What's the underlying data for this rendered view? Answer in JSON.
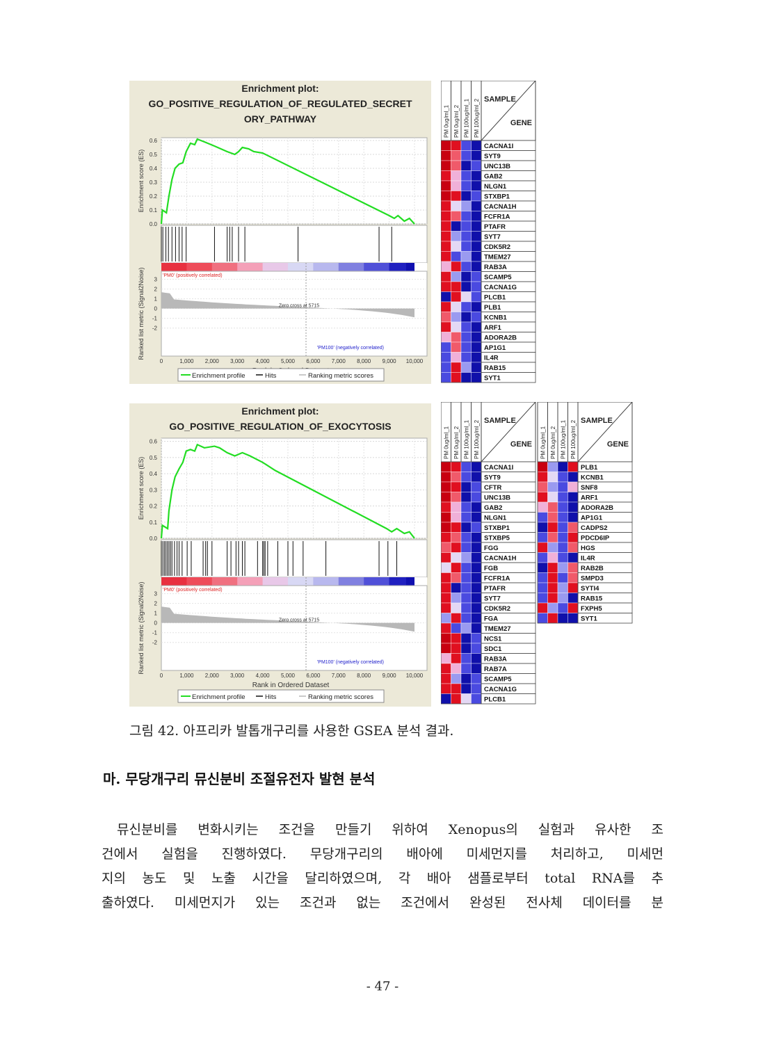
{
  "colors": {
    "panel_bg": "#ece9d8",
    "curve": "#22dd22",
    "hits": "#111111",
    "ranking": "#b8b8b8",
    "positive_label": "#dd2222",
    "negative_label": "#2222cc",
    "heat_scale": [
      "#1010aa",
      "#4a4ae0",
      "#9a9af0",
      "#e4d8f4",
      "#f0b0d8",
      "#f05a6a",
      "#e01020",
      "#c80010"
    ]
  },
  "figure": {
    "caption": "그림 42. 아프리카 발톱개구리를 사용한 GSEA 분석 결과.",
    "plots": [
      {
        "title_label": "Enrichment plot:",
        "title_lines": [
          "GO_POSITIVE_REGULATION_OF_REGULATED_SECRET",
          "ORY_PATHWAY"
        ],
        "es_ylabel": "Enrichment score (ES)",
        "rank_ylabel": "Ranked list metric (Signal2Noise)",
        "xlabel": "Rank in Ordered Dataset",
        "es_ticks": [
          "0.6",
          "0.5",
          "0.4",
          "0.3",
          "0.2",
          "0.1",
          "0.0"
        ],
        "rank_ticks": [
          "3",
          "2",
          "1",
          "0",
          "-1",
          "-2"
        ],
        "x_ticks": [
          "0",
          "1,000",
          "2,000",
          "3,000",
          "4,000",
          "5,000",
          "6,000",
          "7,000",
          "8,000",
          "9,000",
          "10,000"
        ],
        "positive_label": "'PM0' (positively correlated)",
        "negative_label": "'PM100' (negatively correlated)",
        "zero_cross": "Zero cross at 5715",
        "legend": [
          "Enrichment profile",
          "Hits",
          "Ranking metric scores"
        ]
      },
      {
        "title_label": "Enrichment plot:",
        "title_lines": [
          "GO_POSITIVE_REGULATION_OF_EXOCYTOSIS"
        ],
        "es_ylabel": "Enrichment score (ES)",
        "rank_ylabel": "Ranked list metric (Signal2Noise)",
        "xlabel": "Rank in Ordered Dataset",
        "es_ticks": [
          "0.6",
          "0.5",
          "0.4",
          "0.3",
          "0.2",
          "0.1",
          "0.0"
        ],
        "rank_ticks": [
          "3",
          "2",
          "1",
          "0",
          "-1",
          "-2"
        ],
        "x_ticks": [
          "0",
          "1,000",
          "2,000",
          "3,000",
          "4,000",
          "5,000",
          "6,000",
          "7,000",
          "8,000",
          "9,000",
          "10,000"
        ],
        "positive_label": "'PM0' (positively correlated)",
        "negative_label": "'PM100' (negatively correlated)",
        "zero_cross": "Zero cross at 5715",
        "legend": [
          "Enrichment profile",
          "Hits",
          "Ranking metric scores"
        ]
      }
    ],
    "heatmaps": [
      {
        "samples": [
          "PM 0ug/ml_1",
          "PM 0ug/ml_2",
          "PM 100ug/ml_1",
          "PM 100ug/ml_2"
        ],
        "header_sample": "SAMPLE",
        "header_gene": "GENE",
        "blocks": [
          {
            "genes": [
              "CACNA1I",
              "SYT9",
              "UNC13B",
              "GAB2",
              "NLGN1",
              "STXBP1",
              "CACNA1H",
              "FCFR1A",
              "PTAFR",
              "SYT7",
              "CDK5R2",
              "TMEM27",
              "RAB3A",
              "SCAMP5",
              "CACNA1G",
              "PLCB1",
              "PLB1",
              "KCNB1",
              "ARF1",
              "ADORA2B",
              "AP1G1",
              "IL4R",
              "RAB15",
              "SYT1"
            ],
            "values": [
              [
                7,
                6,
                1,
                0
              ],
              [
                7,
                5,
                1,
                0
              ],
              [
                7,
                5,
                0,
                1
              ],
              [
                6,
                4,
                1,
                0
              ],
              [
                7,
                4,
                1,
                0
              ],
              [
                7,
                6,
                0,
                1
              ],
              [
                6,
                3,
                2,
                0
              ],
              [
                6,
                5,
                1,
                0
              ],
              [
                6,
                0,
                1,
                0
              ],
              [
                6,
                2,
                1,
                0
              ],
              [
                6,
                3,
                1,
                0
              ],
              [
                6,
                1,
                2,
                0
              ],
              [
                4,
                6,
                1,
                0
              ],
              [
                6,
                2,
                0,
                1
              ],
              [
                6,
                6,
                0,
                1
              ],
              [
                0,
                6,
                3,
                1
              ],
              [
                6,
                3,
                1,
                0
              ],
              [
                5,
                2,
                0,
                1
              ],
              [
                6,
                3,
                1,
                0
              ],
              [
                4,
                5,
                1,
                0
              ],
              [
                1,
                5,
                1,
                0
              ],
              [
                1,
                4,
                1,
                0
              ],
              [
                1,
                6,
                2,
                0
              ],
              [
                1,
                6,
                0,
                0
              ]
            ]
          }
        ]
      },
      {
        "samples": [
          "PM 0ug/ml_1",
          "PM 0ug/ml_2",
          "PM 100ug/ml_1",
          "PM 100ug/ml_2"
        ],
        "header_sample": "SAMPLE",
        "header_gene": "GENE",
        "blocks": [
          {
            "genes": [
              "CACNA1I",
              "SYT9",
              "CFTR",
              "UNC13B",
              "GAB2",
              "NLGN1",
              "STXBP1",
              "STXBP5",
              "FGG",
              "CACNA1H",
              "FGB",
              "FCFR1A",
              "PTAFR",
              "SYT7",
              "CDK5R2",
              "FGA",
              "TMEM27",
              "NCS1",
              "SDC1",
              "RAB3A",
              "RAB7A",
              "SCAMP5",
              "CACNA1G",
              "PLCB1"
            ],
            "values": [
              [
                7,
                6,
                1,
                0
              ],
              [
                7,
                5,
                1,
                0
              ],
              [
                7,
                6,
                0,
                1
              ],
              [
                7,
                5,
                0,
                1
              ],
              [
                6,
                4,
                1,
                0
              ],
              [
                7,
                4,
                1,
                0
              ],
              [
                7,
                6,
                0,
                1
              ],
              [
                6,
                5,
                1,
                0
              ],
              [
                5,
                6,
                1,
                0
              ],
              [
                6,
                3,
                2,
                0
              ],
              [
                3,
                6,
                1,
                0
              ],
              [
                6,
                5,
                1,
                0
              ],
              [
                6,
                0,
                1,
                0
              ],
              [
                6,
                2,
                1,
                0
              ],
              [
                6,
                3,
                1,
                0
              ],
              [
                2,
                6,
                1,
                0
              ],
              [
                6,
                1,
                2,
                0
              ],
              [
                7,
                6,
                0,
                1
              ],
              [
                7,
                6,
                0,
                1
              ],
              [
                4,
                6,
                1,
                0
              ],
              [
                6,
                4,
                1,
                0
              ],
              [
                6,
                2,
                0,
                1
              ],
              [
                6,
                6,
                0,
                1
              ],
              [
                0,
                6,
                3,
                1
              ]
            ]
          },
          {
            "genes": [
              "PLB1",
              "KCNB1",
              "SNF8",
              "ARF1",
              "ADORA2B",
              "AP1G1",
              "CADPS2",
              "PDCD6IP",
              "HGS",
              "IL4R",
              "RAB2B",
              "SMPD3",
              "SYTI4",
              "RAB15",
              "FXPH5",
              "SYT1"
            ],
            "values": [
              [
                7,
                2,
                0,
                6
              ],
              [
                6,
                3,
                1,
                0
              ],
              [
                5,
                2,
                1,
                4
              ],
              [
                6,
                3,
                1,
                0
              ],
              [
                4,
                5,
                1,
                0
              ],
              [
                1,
                5,
                1,
                0
              ],
              [
                0,
                6,
                1,
                5
              ],
              [
                1,
                5,
                1,
                6
              ],
              [
                6,
                2,
                1,
                5
              ],
              [
                1,
                4,
                1,
                0
              ],
              [
                0,
                6,
                2,
                5
              ],
              [
                1,
                6,
                1,
                5
              ],
              [
                1,
                6,
                2,
                6
              ],
              [
                1,
                6,
                2,
                0
              ],
              [
                6,
                2,
                1,
                6
              ],
              [
                1,
                6,
                0,
                0
              ]
            ]
          }
        ]
      }
    ]
  },
  "section": {
    "heading": "마. 무당개구리 뮤신분비 조절유전자 발현 분석",
    "paragraph_lines": [
      "뮤신분비를 변화시키는 조건을 만들기 위하여 Xenopus의 실험과 유사한 조",
      "건에서 실험을 진행하였다. 무당개구리의 배아에 미세먼지를 처리하고, 미세먼",
      "지의 농도 및 노출 시간을 달리하였으며, 각 배아 샘플로부터 total RNA를 추",
      "출하였다. 미세먼지가 있는 조건과 없는 조건에서 완성된 전사체 데이터를 분"
    ]
  },
  "page_number": "- 47 -"
}
